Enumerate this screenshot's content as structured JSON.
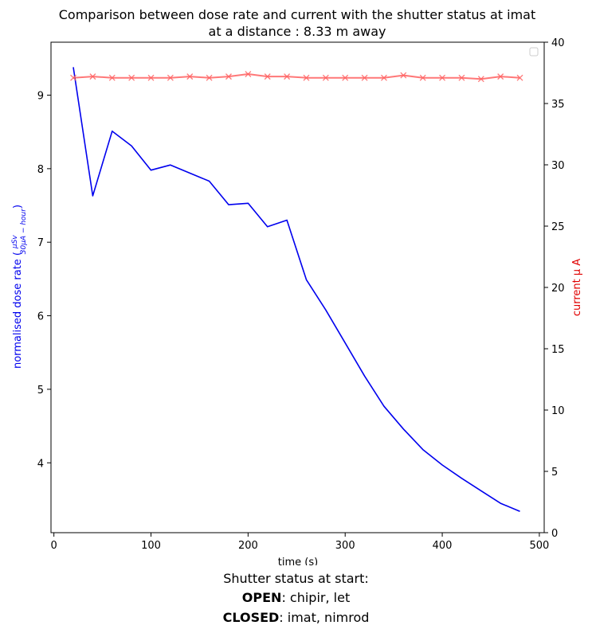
{
  "chart_data": {
    "type": "line",
    "title_line1": "Comparison between dose rate and current with the shutter status at imat",
    "title_line2": "at a distance : 8.33 m away",
    "xlabel": "time (s)",
    "ylabel_left_prefix": "normalised dose rate (",
    "ylabel_left_num": "μSv",
    "ylabel_left_den": "30μA − hour",
    "ylabel_left_suffix": ")",
    "ylabel_right": "current μ A",
    "xlim": [
      -3,
      505
    ],
    "ylim_left": [
      3.05,
      9.72
    ],
    "ylim_right": [
      0,
      40
    ],
    "xticks": [
      0,
      100,
      200,
      300,
      400,
      500
    ],
    "yticks_left": [
      4,
      5,
      6,
      7,
      8,
      9
    ],
    "yticks_right": [
      0,
      5,
      10,
      15,
      20,
      25,
      30,
      35,
      40
    ],
    "series": [
      {
        "axis": "left",
        "color": "#0000ee",
        "x": [
          20,
          40,
          60,
          80,
          100,
          120,
          140,
          160,
          180,
          200,
          220,
          240,
          260,
          280,
          300,
          320,
          340,
          360,
          380,
          400,
          420,
          440,
          460,
          480
        ],
        "values": [
          9.38,
          7.63,
          8.51,
          8.31,
          7.98,
          8.05,
          7.94,
          7.83,
          7.51,
          7.53,
          7.21,
          7.3,
          6.49,
          6.08,
          5.63,
          5.18,
          4.77,
          4.46,
          4.18,
          3.97,
          3.79,
          3.62,
          3.45,
          3.34
        ]
      },
      {
        "axis": "right",
        "color": "#ff6060",
        "marker": "x",
        "x": [
          20,
          40,
          60,
          80,
          100,
          120,
          140,
          160,
          180,
          200,
          220,
          240,
          260,
          280,
          300,
          320,
          340,
          360,
          380,
          400,
          420,
          440,
          460,
          480
        ],
        "values": [
          37.1,
          37.2,
          37.1,
          37.1,
          37.1,
          37.1,
          37.2,
          37.1,
          37.2,
          37.4,
          37.2,
          37.2,
          37.1,
          37.1,
          37.1,
          37.1,
          37.1,
          37.3,
          37.1,
          37.1,
          37.1,
          37.0,
          37.2,
          37.1
        ]
      }
    ],
    "legend": "top-right",
    "grid": false
  },
  "footer": {
    "line1": "Shutter status at start:",
    "open_label": "OPEN",
    "open_value": ":  chipir, let",
    "closed_label": "CLOSED",
    "closed_value": ":  imat, nimrod"
  }
}
